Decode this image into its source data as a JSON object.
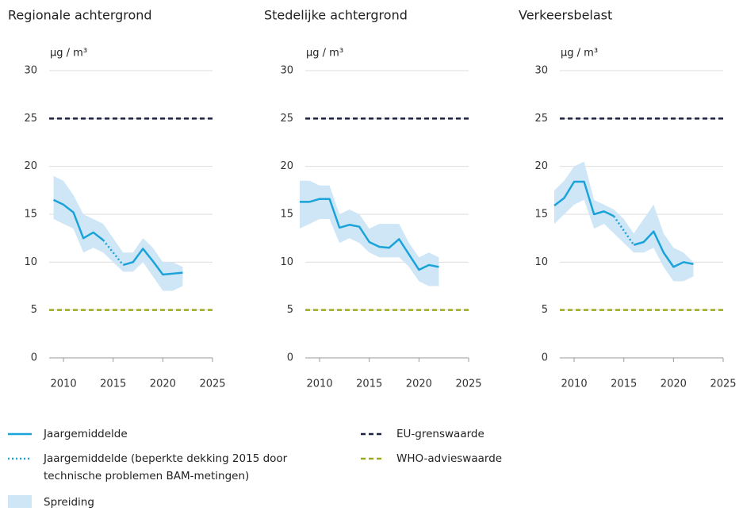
{
  "chart_data": [
    {
      "type": "line",
      "title": "Regionale achtergrond",
      "y_label": "µg / m³",
      "x": [
        2009,
        2010,
        2011,
        2012,
        2013,
        2014,
        2015,
        2016,
        2017,
        2018,
        2019,
        2020,
        2021,
        2022
      ],
      "series": [
        {
          "color": "#1aa3d9",
          "style": "solid",
          "values": [
            16.5,
            16.0,
            15.2,
            12.5,
            13.1,
            12.3,
            null,
            9.7,
            10.0,
            11.4,
            10.1,
            8.7,
            8.8,
            8.9
          ]
        },
        {
          "color": "#1aa3d9",
          "style": "dotted",
          "values": [
            null,
            null,
            null,
            null,
            null,
            12.3,
            11.0,
            9.7,
            null,
            null,
            null,
            null,
            null,
            null
          ]
        }
      ],
      "band": {
        "color": "#cfe6f7",
        "low": [
          14.5,
          14,
          13.5,
          11,
          11.5,
          11,
          10,
          9,
          9,
          10,
          8.5,
          7,
          7,
          7.5
        ],
        "high": [
          19,
          18.5,
          17,
          15,
          14.5,
          14,
          12.5,
          11,
          11,
          12.5,
          11.5,
          10,
          10,
          9.5
        ]
      },
      "reference_lines": [
        {
          "value": 25,
          "color": "#1b2240"
        },
        {
          "value": 5,
          "color": "#9aaa1e"
        }
      ],
      "xlim": [
        2008,
        2025
      ],
      "xticks": [
        2010,
        2015,
        2020,
        2025
      ],
      "ylim": [
        0,
        30
      ],
      "yticks": [
        0,
        5,
        10,
        15,
        20,
        25,
        30
      ],
      "grid": true
    },
    {
      "type": "line",
      "title": "Stedelijke achtergrond",
      "y_label": "µg / m³",
      "x": [
        2008,
        2009,
        2010,
        2011,
        2012,
        2013,
        2014,
        2015,
        2016,
        2017,
        2018,
        2019,
        2020,
        2021,
        2022
      ],
      "series": [
        {
          "color": "#1aa3d9",
          "style": "solid",
          "values": [
            16.3,
            16.3,
            16.6,
            16.6,
            13.6,
            13.9,
            13.7,
            12.1,
            11.6,
            11.5,
            12.4,
            10.8,
            9.2,
            9.7,
            9.5
          ]
        }
      ],
      "band": {
        "color": "#cfe6f7",
        "low": [
          13.5,
          14,
          14.5,
          14.5,
          12,
          12.5,
          12,
          11,
          10.5,
          10.5,
          10.5,
          9.5,
          8,
          7.5,
          7.5
        ],
        "high": [
          18.5,
          18.5,
          18,
          18,
          15,
          15.5,
          15,
          13.5,
          14,
          14,
          14,
          12,
          10.5,
          11,
          10.5
        ]
      },
      "reference_lines": [
        {
          "value": 25,
          "color": "#1b2240"
        },
        {
          "value": 5,
          "color": "#9aaa1e"
        }
      ],
      "xlim": [
        2008,
        2025
      ],
      "xticks": [
        2010,
        2015,
        2020,
        2025
      ],
      "ylim": [
        0,
        30
      ],
      "yticks": [
        0,
        5,
        10,
        15,
        20,
        25,
        30
      ],
      "grid": true
    },
    {
      "type": "line",
      "title": "Verkeersbelast",
      "y_label": "µg / m³",
      "x": [
        2008,
        2009,
        2010,
        2011,
        2012,
        2013,
        2014,
        2015,
        2016,
        2017,
        2018,
        2019,
        2020,
        2021,
        2022
      ],
      "series": [
        {
          "color": "#1aa3d9",
          "style": "solid",
          "values": [
            15.9,
            16.7,
            18.4,
            18.4,
            15.0,
            15.3,
            14.8,
            null,
            11.8,
            12.1,
            13.2,
            11.0,
            9.5,
            10.0,
            9.8
          ]
        },
        {
          "color": "#1aa3d9",
          "style": "dotted",
          "values": [
            null,
            null,
            null,
            null,
            null,
            null,
            14.8,
            13.3,
            11.8,
            null,
            null,
            null,
            null,
            null,
            null
          ]
        }
      ],
      "band": {
        "color": "#cfe6f7",
        "low": [
          14,
          15,
          16,
          16.5,
          13.5,
          14,
          13,
          12,
          11,
          11,
          11.5,
          9.5,
          8,
          8,
          8.5
        ],
        "high": [
          17.5,
          18.5,
          20,
          20.5,
          16.5,
          16,
          15.5,
          14.5,
          13,
          14.5,
          16,
          13,
          11.5,
          11,
          10
        ]
      },
      "reference_lines": [
        {
          "value": 25,
          "color": "#1b2240"
        },
        {
          "value": 5,
          "color": "#9aaa1e"
        }
      ],
      "xlim": [
        2008,
        2025
      ],
      "xticks": [
        2010,
        2015,
        2020,
        2025
      ],
      "ylim": [
        0,
        30
      ],
      "yticks": [
        0,
        5,
        10,
        15,
        20,
        25,
        30
      ],
      "grid": true
    }
  ],
  "legend": [
    {
      "label": "Jaargemiddelde"
    },
    {
      "label": "Jaargemiddelde (beperkte dekking 2015 door",
      "label_line2": "technische problemen BAM-metingen)"
    },
    {
      "label": "Spreiding"
    },
    {
      "label": "EU-grenswaarde"
    },
    {
      "label": "WHO-advieswaarde"
    }
  ]
}
